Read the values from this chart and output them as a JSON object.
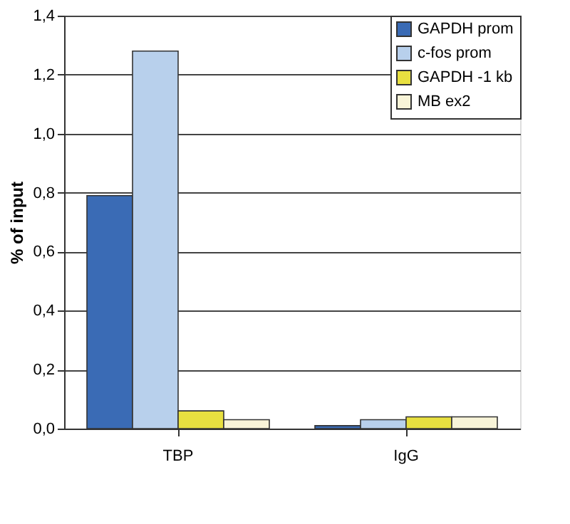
{
  "chart_data": {
    "type": "bar",
    "ylabel": "% of input",
    "categories": [
      "TBP",
      "IgG"
    ],
    "series": [
      {
        "name": "GAPDH prom",
        "color": "#3a6bb5",
        "values": [
          0.79,
          0.01
        ]
      },
      {
        "name": "c-fos prom",
        "color": "#b8d0ec",
        "values": [
          1.28,
          0.03
        ]
      },
      {
        "name": "GAPDH -1 kb",
        "color": "#e8e040",
        "values": [
          0.06,
          0.04
        ]
      },
      {
        "name": "MB ex2",
        "color": "#f8f4d8",
        "values": [
          0.03,
          0.04
        ]
      }
    ],
    "ylim": [
      0,
      1.4
    ],
    "yticks": [
      {
        "value": 0,
        "label": "0,0"
      },
      {
        "value": 0.2,
        "label": "0,2"
      },
      {
        "value": 0.4,
        "label": "0,4"
      },
      {
        "value": 0.6,
        "label": "0,6"
      },
      {
        "value": 0.8,
        "label": "0,8"
      },
      {
        "value": 1.0,
        "label": "1,0"
      },
      {
        "value": 1.2,
        "label": "1,2"
      },
      {
        "value": 1.4,
        "label": "1,4"
      }
    ],
    "grid": "y",
    "legend": "top right"
  }
}
